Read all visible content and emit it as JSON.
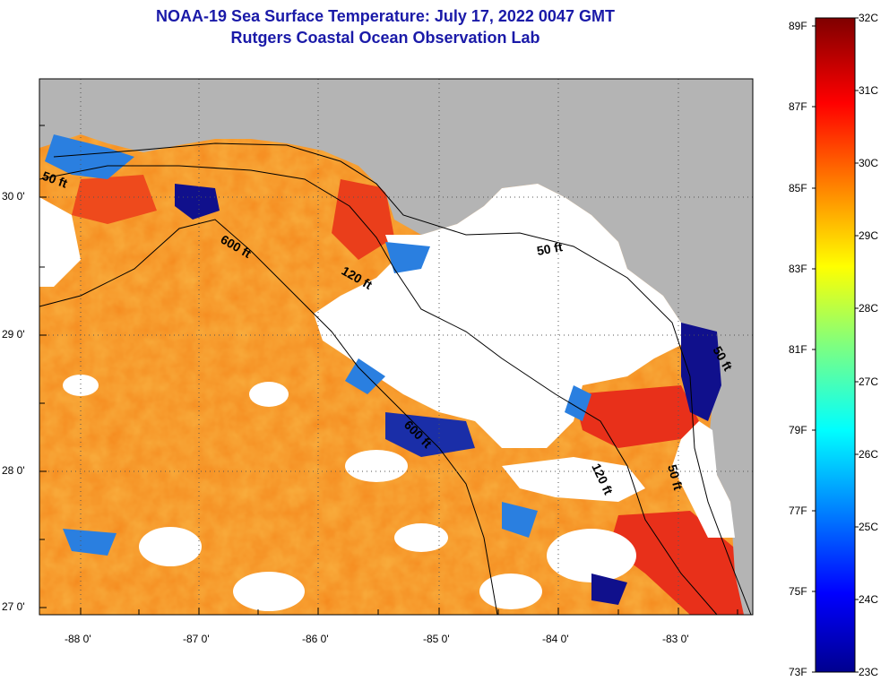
{
  "title": {
    "line1": "NOAA-19 Sea Surface Temperature:  July 17, 2022 0047 GMT",
    "line2": "Rutgers Coastal Ocean Observation Lab"
  },
  "axes": {
    "lat_labels": [
      "30 0'",
      "29 0'",
      "28 0'",
      "27 0'"
    ],
    "lon_labels": [
      "-88 0'",
      "-87 0'",
      "-86 0'",
      "-85 0'",
      "-84 0'",
      "-83 0'"
    ]
  },
  "contours": [
    {
      "label": "50 ft"
    },
    {
      "label": "600 ft"
    },
    {
      "label": "120 ft"
    },
    {
      "label": "50 ft"
    },
    {
      "label": "600 ft"
    },
    {
      "label": "120 ft"
    },
    {
      "label": "50 ft"
    },
    {
      "label": "50 ft"
    }
  ],
  "colorbar": {
    "celsius": [
      "32C",
      "31C",
      "30C",
      "29C",
      "28C",
      "27C",
      "26C",
      "25C",
      "24C",
      "23C"
    ],
    "fahrenheit": [
      "89F",
      "87F",
      "85F",
      "83F",
      "81F",
      "79F",
      "77F",
      "75F",
      "73F"
    ]
  },
  "colors": {
    "title": "#1a1aa8",
    "land": "#b4b4b4",
    "cloud": "#ffffff",
    "ocean_warm": "#f58a1e",
    "ocean_hot": "#e8301a",
    "cold": "#10108c",
    "cool": "#2a7fe0"
  }
}
